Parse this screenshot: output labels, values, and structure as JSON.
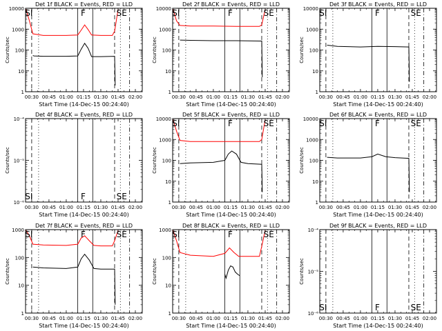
{
  "figure": {
    "x_axis_title": "Start Time (14-Dec-15 00:24:40)",
    "y_axis_title": "Counts/sec"
  },
  "colors": {
    "events": "#000000",
    "lld": "#ff0000",
    "axes": "#000000"
  },
  "chart_data": [
    {
      "type": "line",
      "title": "Det 1f BLACK = Events, RED = LLD",
      "ylim": [
        1,
        10000
      ],
      "yscale": "log",
      "ytick_values": [
        1,
        10,
        100,
        1000,
        10000
      ],
      "ytick_labels": [
        "1",
        "10",
        "100",
        "1000",
        "10000"
      ],
      "series": [
        {
          "name": "Events",
          "x": [
            "00:31",
            "00:32",
            "00:40",
            "01:00",
            "01:10",
            "01:13",
            "01:16",
            "01:19",
            "01:22",
            "01:30",
            "01:42",
            "01:42:30"
          ],
          "values": [
            55,
            52,
            50,
            50,
            52,
            110,
            210,
            120,
            48,
            48,
            50,
            2
          ]
        },
        {
          "name": "LLD",
          "x": [
            "00:25",
            "00:28",
            "00:31",
            "00:40",
            "01:00",
            "01:10",
            "01:13",
            "01:16",
            "01:19",
            "01:22",
            "01:30",
            "01:40",
            "01:42",
            "01:45"
          ],
          "values": [
            9000,
            2500,
            600,
            500,
            500,
            520,
            900,
            1600,
            950,
            520,
            500,
            500,
            800,
            9000
          ]
        }
      ],
      "markers": [
        {
          "x": "00:26",
          "label": "SI"
        },
        {
          "x": "01:15",
          "label": "F"
        },
        {
          "x": "01:46",
          "label": "SE"
        }
      ],
      "vlines": [
        {
          "x": "00:30",
          "style": "dashed"
        },
        {
          "x": "00:36",
          "style": "dotted"
        },
        {
          "x": "01:10",
          "style": "solid"
        },
        {
          "x": "01:23",
          "style": "solid"
        },
        {
          "x": "01:42",
          "style": "dashed"
        },
        {
          "x": "01:47",
          "style": "dotted"
        },
        {
          "x": "01:55",
          "style": "dash-dot"
        }
      ]
    },
    {
      "type": "line",
      "title": "Det 2f BLACK = Events, RED = LLD",
      "ylim": [
        1,
        10000
      ],
      "yscale": "log",
      "ytick_values": [
        1,
        10,
        100,
        1000,
        10000
      ],
      "ytick_labels": [
        "1",
        "10",
        "100",
        "1000",
        "10000"
      ],
      "series": [
        {
          "name": "Events",
          "x": [
            "00:31",
            "00:40",
            "01:00",
            "01:20",
            "01:40",
            "01:42",
            "01:42:30"
          ],
          "values": [
            300,
            290,
            280,
            280,
            270,
            270,
            5
          ]
        },
        {
          "name": "LLD",
          "x": [
            "00:25",
            "00:28",
            "00:31",
            "00:40",
            "01:00",
            "01:20",
            "01:40",
            "01:42",
            "01:45"
          ],
          "values": [
            9000,
            2500,
            1500,
            1400,
            1400,
            1350,
            1350,
            1600,
            9000
          ]
        }
      ],
      "markers": [
        {
          "x": "00:26",
          "label": "SI"
        },
        {
          "x": "01:15",
          "label": "F"
        },
        {
          "x": "01:46",
          "label": "SE"
        }
      ],
      "vlines": [
        {
          "x": "00:30",
          "style": "dashed"
        },
        {
          "x": "00:36",
          "style": "dotted"
        },
        {
          "x": "01:10",
          "style": "solid"
        },
        {
          "x": "01:23",
          "style": "solid"
        },
        {
          "x": "01:42",
          "style": "dashed"
        },
        {
          "x": "01:47",
          "style": "dotted"
        },
        {
          "x": "01:55",
          "style": "dash-dot"
        }
      ]
    },
    {
      "type": "line",
      "title": "Det 3f BLACK = Events, RED = LLD",
      "ylim": [
        1,
        10000
      ],
      "yscale": "log",
      "ytick_values": [
        1,
        10,
        100,
        1000,
        10000
      ],
      "ytick_labels": [
        "1",
        "10",
        "100",
        "1000",
        "10000"
      ],
      "series": [
        {
          "name": "Events",
          "x": [
            "00:31",
            "00:40",
            "01:00",
            "01:15",
            "01:30",
            "01:42",
            "01:42:30"
          ],
          "values": [
            170,
            150,
            140,
            150,
            145,
            140,
            3
          ]
        }
      ],
      "markers": [
        {
          "x": "00:26",
          "label": "SI"
        },
        {
          "x": "01:15",
          "label": "F"
        },
        {
          "x": "01:46",
          "label": "SE"
        }
      ],
      "vlines": [
        {
          "x": "00:30",
          "style": "dashed"
        },
        {
          "x": "00:36",
          "style": "dotted"
        },
        {
          "x": "01:10",
          "style": "solid"
        },
        {
          "x": "01:23",
          "style": "solid"
        },
        {
          "x": "01:42",
          "style": "dashed"
        },
        {
          "x": "01:47",
          "style": "dotted"
        },
        {
          "x": "01:55",
          "style": "dash-dot"
        }
      ]
    },
    {
      "type": "line",
      "title": "Det 4f BLACK = Events, RED = LLD",
      "ylim": [
        1e-06,
        0.0001
      ],
      "yscale": "log",
      "ytick_values": [
        1e-06,
        1e-05,
        0.0001
      ],
      "ytick_labels": [
        "10⁻⁶",
        "10⁻⁵",
        "10⁻⁴"
      ],
      "series": [],
      "markers": [
        {
          "x": "00:26",
          "label": "SI"
        },
        {
          "x": "01:15",
          "label": "F"
        },
        {
          "x": "01:46",
          "label": "SE"
        }
      ],
      "vlines": [
        {
          "x": "00:30",
          "style": "dashed"
        },
        {
          "x": "00:36",
          "style": "dotted"
        },
        {
          "x": "01:10",
          "style": "solid"
        },
        {
          "x": "01:23",
          "style": "solid"
        },
        {
          "x": "01:42",
          "style": "dashed"
        },
        {
          "x": "01:47",
          "style": "dotted"
        },
        {
          "x": "01:55",
          "style": "dash-dot"
        }
      ]
    },
    {
      "type": "line",
      "title": "Det 5f BLACK = Events, RED = LLD",
      "ylim": [
        1,
        10000
      ],
      "yscale": "log",
      "ytick_values": [
        1,
        10,
        100,
        1000,
        10000
      ],
      "ytick_labels": [
        "1",
        "10",
        "100",
        "1000",
        "10000"
      ],
      "series": [
        {
          "name": "Events",
          "x": [
            "00:31",
            "00:40",
            "01:00",
            "01:10",
            "01:13",
            "01:16",
            "01:20",
            "01:24",
            "01:30",
            "01:42",
            "01:42:30"
          ],
          "values": [
            70,
            75,
            80,
            100,
            200,
            280,
            200,
            80,
            70,
            65,
            3
          ]
        },
        {
          "name": "LLD",
          "x": [
            "00:25",
            "00:28",
            "00:31",
            "00:40",
            "01:00",
            "01:20",
            "01:40",
            "01:42",
            "01:45"
          ],
          "values": [
            9000,
            2500,
            900,
            800,
            800,
            790,
            790,
            1000,
            9000
          ]
        }
      ],
      "markers": [
        {
          "x": "00:26",
          "label": "SI"
        },
        {
          "x": "01:15",
          "label": "F"
        },
        {
          "x": "01:46",
          "label": "SE"
        }
      ],
      "vlines": [
        {
          "x": "00:30",
          "style": "dashed"
        },
        {
          "x": "00:36",
          "style": "dotted"
        },
        {
          "x": "01:10",
          "style": "solid"
        },
        {
          "x": "01:23",
          "style": "solid"
        },
        {
          "x": "01:42",
          "style": "dashed"
        },
        {
          "x": "01:47",
          "style": "dotted"
        },
        {
          "x": "01:55",
          "style": "dash-dot"
        }
      ]
    },
    {
      "type": "line",
      "title": "Det 6f BLACK = Events, RED = LLD",
      "ylim": [
        1,
        10000
      ],
      "yscale": "log",
      "ytick_values": [
        1,
        10,
        100,
        1000,
        10000
      ],
      "ytick_labels": [
        "1",
        "10",
        "100",
        "1000",
        "10000"
      ],
      "series": [
        {
          "name": "Events",
          "x": [
            "00:31",
            "00:40",
            "01:00",
            "01:10",
            "01:15",
            "01:22",
            "01:30",
            "01:42",
            "01:42:30"
          ],
          "values": [
            140,
            130,
            130,
            150,
            200,
            150,
            135,
            125,
            3
          ]
        }
      ],
      "markers": [
        {
          "x": "00:26",
          "label": "SI"
        },
        {
          "x": "01:15",
          "label": "F"
        },
        {
          "x": "01:46",
          "label": "SE"
        }
      ],
      "vlines": [
        {
          "x": "00:30",
          "style": "dashed"
        },
        {
          "x": "00:36",
          "style": "dotted"
        },
        {
          "x": "01:10",
          "style": "solid"
        },
        {
          "x": "01:23",
          "style": "solid"
        },
        {
          "x": "01:42",
          "style": "dashed"
        },
        {
          "x": "01:47",
          "style": "dotted"
        },
        {
          "x": "01:55",
          "style": "dash-dot"
        }
      ]
    },
    {
      "type": "line",
      "title": "Det 7f BLACK = Events, RED = LLD",
      "ylim": [
        1,
        1000
      ],
      "yscale": "log",
      "ytick_values": [
        1,
        10,
        100,
        1000
      ],
      "ytick_labels": [
        "1",
        "10",
        "100",
        "1000"
      ],
      "series": [
        {
          "name": "Events",
          "x": [
            "00:31",
            "00:40",
            "01:00",
            "01:10",
            "01:13",
            "01:16",
            "01:20",
            "01:24",
            "01:30",
            "01:42",
            "01:42:30"
          ],
          "values": [
            45,
            42,
            40,
            45,
            90,
            130,
            80,
            40,
            38,
            38,
            2
          ]
        },
        {
          "name": "LLD",
          "x": [
            "00:25",
            "00:28",
            "00:31",
            "00:40",
            "01:00",
            "01:10",
            "01:13",
            "01:16",
            "01:20",
            "01:24",
            "01:30",
            "01:40",
            "01:42",
            "01:45"
          ],
          "values": [
            950,
            600,
            300,
            280,
            270,
            300,
            500,
            600,
            400,
            270,
            260,
            260,
            400,
            950
          ]
        }
      ],
      "markers": [
        {
          "x": "00:26",
          "label": "SI"
        },
        {
          "x": "01:15",
          "label": "F"
        },
        {
          "x": "01:46",
          "label": "SE"
        }
      ],
      "vlines": [
        {
          "x": "00:30",
          "style": "dashed"
        },
        {
          "x": "00:36",
          "style": "dotted"
        },
        {
          "x": "01:10",
          "style": "solid"
        },
        {
          "x": "01:23",
          "style": "solid"
        },
        {
          "x": "01:42",
          "style": "dashed"
        },
        {
          "x": "01:47",
          "style": "dotted"
        },
        {
          "x": "01:55",
          "style": "dash-dot"
        }
      ]
    },
    {
      "type": "line",
      "title": "Det 8f BLACK = Events, RED = LLD",
      "ylim": [
        1,
        1000
      ],
      "yscale": "log",
      "ytick_values": [
        1,
        10,
        100,
        1000
      ],
      "ytick_labels": [
        "1",
        "10",
        "100",
        "1000"
      ],
      "series": [
        {
          "name": "Events",
          "x": [
            "01:10",
            "01:11",
            "01:13",
            "01:15",
            "01:17",
            "01:19",
            "01:21",
            "01:23"
          ],
          "values": [
            25,
            18,
            35,
            50,
            45,
            30,
            25,
            22
          ]
        },
        {
          "name": "LLD",
          "x": [
            "00:25",
            "00:28",
            "00:31",
            "00:40",
            "01:00",
            "01:10",
            "01:14",
            "01:18",
            "01:22",
            "01:30",
            "01:40",
            "01:42",
            "01:45"
          ],
          "values": [
            950,
            400,
            150,
            120,
            110,
            140,
            220,
            150,
            110,
            110,
            110,
            250,
            950
          ]
        }
      ],
      "markers": [
        {
          "x": "00:26",
          "label": "SI"
        },
        {
          "x": "01:15",
          "label": "F"
        },
        {
          "x": "01:46",
          "label": "SE"
        }
      ],
      "vlines": [
        {
          "x": "00:30",
          "style": "dashed"
        },
        {
          "x": "00:36",
          "style": "dotted"
        },
        {
          "x": "01:10",
          "style": "solid"
        },
        {
          "x": "01:23",
          "style": "solid"
        },
        {
          "x": "01:42",
          "style": "dashed"
        },
        {
          "x": "01:47",
          "style": "dotted"
        },
        {
          "x": "01:55",
          "style": "dash-dot"
        }
      ]
    },
    {
      "type": "line",
      "title": "Det 9f BLACK = Events, RED = LLD",
      "ylim": [
        1e-06,
        0.0001
      ],
      "yscale": "log",
      "ytick_values": [
        1e-06,
        1e-05,
        0.0001
      ],
      "ytick_labels": [
        "10⁻⁶",
        "10⁻⁵",
        "10⁻⁴"
      ],
      "series": [],
      "markers": [
        {
          "x": "00:26",
          "label": "SI"
        },
        {
          "x": "01:15",
          "label": "F"
        },
        {
          "x": "01:46",
          "label": "SE"
        }
      ],
      "vlines": [
        {
          "x": "00:30",
          "style": "dashed"
        },
        {
          "x": "00:36",
          "style": "dotted"
        },
        {
          "x": "01:10",
          "style": "solid"
        },
        {
          "x": "01:23",
          "style": "solid"
        },
        {
          "x": "01:42",
          "style": "dashed"
        },
        {
          "x": "01:47",
          "style": "dotted"
        },
        {
          "x": "01:55",
          "style": "dash-dot"
        }
      ]
    }
  ],
  "x_axis": {
    "xlim": [
      "00:24:40",
      "02:06"
    ],
    "tick_values": [
      "00:30",
      "00:45",
      "01:00",
      "01:15",
      "01:30",
      "01:45",
      "02:00"
    ],
    "tick_labels": [
      "00:30",
      "00:45",
      "01:00",
      "01:15",
      "01:30",
      "01:45",
      "02:00"
    ]
  }
}
